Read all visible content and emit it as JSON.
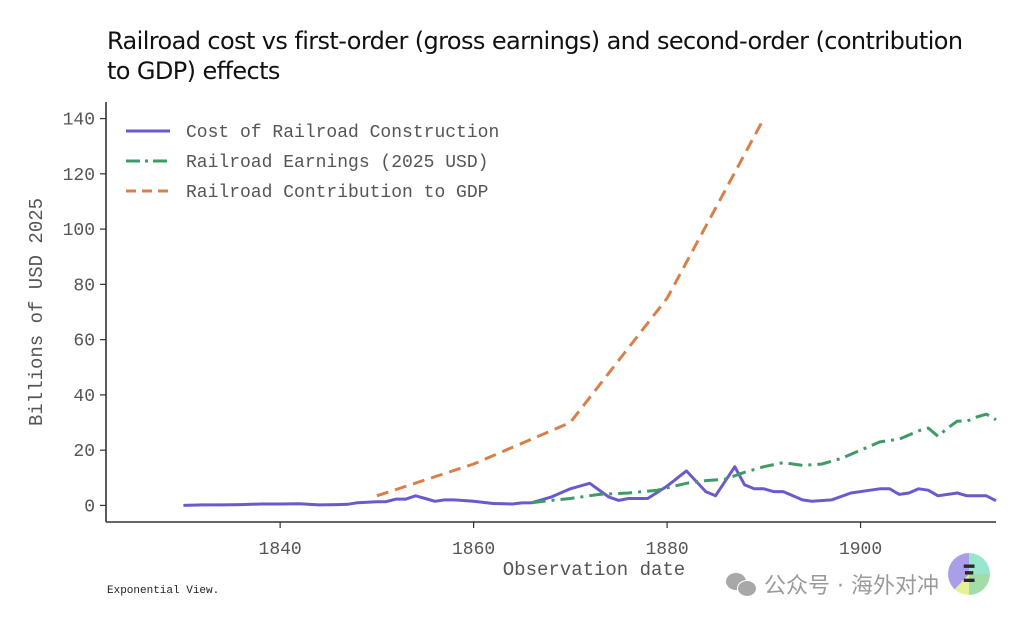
{
  "title": "Railroad cost vs first-order (gross earnings) and second-order (contribution to GDP) effects",
  "credit": "Exponential View.",
  "watermark": {
    "icon": "wechat-icon",
    "text": "公众号 · 海外对冲",
    "badge_letter": "Ξ"
  },
  "chart_data": {
    "type": "line",
    "title": "Railroad cost vs first-order (gross earnings) and second-order (contribution to GDP) effects",
    "xlabel": "Observation date",
    "ylabel": "Billions of USD 2025",
    "xlim": [
      1822,
      1914
    ],
    "ylim": [
      -6,
      146
    ],
    "xticks": [
      1840,
      1860,
      1880,
      1900
    ],
    "xtick_labels": [
      "1840",
      "1860",
      "1880",
      "1900"
    ],
    "yticks": [
      0,
      20,
      40,
      60,
      80,
      100,
      120,
      140
    ],
    "ytick_labels": [
      "0",
      "20",
      "40",
      "60",
      "80",
      "100",
      "120",
      "140"
    ],
    "grid": false,
    "legend_position": "top-left",
    "series": [
      {
        "name": "Cost of Railroad Construction",
        "color": "#6a5acd",
        "style": "solid",
        "x": [
          1830,
          1832,
          1834,
          1836,
          1838,
          1840,
          1842,
          1844,
          1846,
          1847,
          1848,
          1850,
          1851,
          1852,
          1853,
          1854,
          1855,
          1856,
          1857,
          1858,
          1860,
          1862,
          1864,
          1865,
          1866,
          1867,
          1868,
          1870,
          1872,
          1874,
          1875,
          1876,
          1878,
          1880,
          1882,
          1884,
          1885,
          1887,
          1888,
          1889,
          1890,
          1891,
          1892,
          1894,
          1895,
          1897,
          1899,
          1901,
          1902,
          1903,
          1904,
          1905,
          1906,
          1907,
          1908,
          1909,
          1910,
          1911,
          1913,
          1914
        ],
        "values": [
          0,
          0.2,
          0.2,
          0.3,
          0.5,
          0.5,
          0.6,
          0.2,
          0.3,
          0.4,
          1.0,
          1.3,
          1.4,
          2.3,
          2.3,
          3.5,
          2.5,
          1.5,
          2.0,
          2.0,
          1.5,
          0.7,
          0.5,
          0.9,
          1.0,
          2.0,
          3.0,
          6.0,
          8.0,
          3.0,
          1.8,
          2.5,
          2.5,
          7.0,
          12.5,
          5.0,
          3.5,
          14.0,
          7.5,
          6.0,
          6.0,
          5.0,
          5.0,
          2.0,
          1.5,
          2.0,
          4.5,
          5.5,
          6.0,
          6.0,
          4.0,
          4.5,
          6.0,
          5.5,
          3.5,
          4.0,
          4.5,
          3.5,
          3.5,
          1.7
        ]
      },
      {
        "name": "Railroad Earnings (2025 USD)",
        "color": "#3f9a68",
        "style": "dashdot",
        "x": [
          1866,
          1868,
          1870,
          1873,
          1876,
          1879,
          1882,
          1884,
          1886,
          1888,
          1890,
          1892,
          1894,
          1896,
          1898,
          1900,
          1902,
          1904,
          1906,
          1907,
          1908,
          1909,
          1910,
          1911,
          1912,
          1913,
          1914
        ],
        "values": [
          1.0,
          1.8,
          2.5,
          4.0,
          4.5,
          5.5,
          8.0,
          9.0,
          9.5,
          12.0,
          14.0,
          15.5,
          14.5,
          15.0,
          17.0,
          20.0,
          23.0,
          24.0,
          27.0,
          28.0,
          25.0,
          28.0,
          30.5,
          30.5,
          32.0,
          33.0,
          31.0
        ]
      },
      {
        "name": "Railroad Contribution to GDP",
        "color": "#d9804a",
        "style": "dashed",
        "x": [
          1850,
          1860,
          1870,
          1880,
          1890
        ],
        "values": [
          3.5,
          15.0,
          30.0,
          75.0,
          140.0
        ]
      }
    ]
  }
}
